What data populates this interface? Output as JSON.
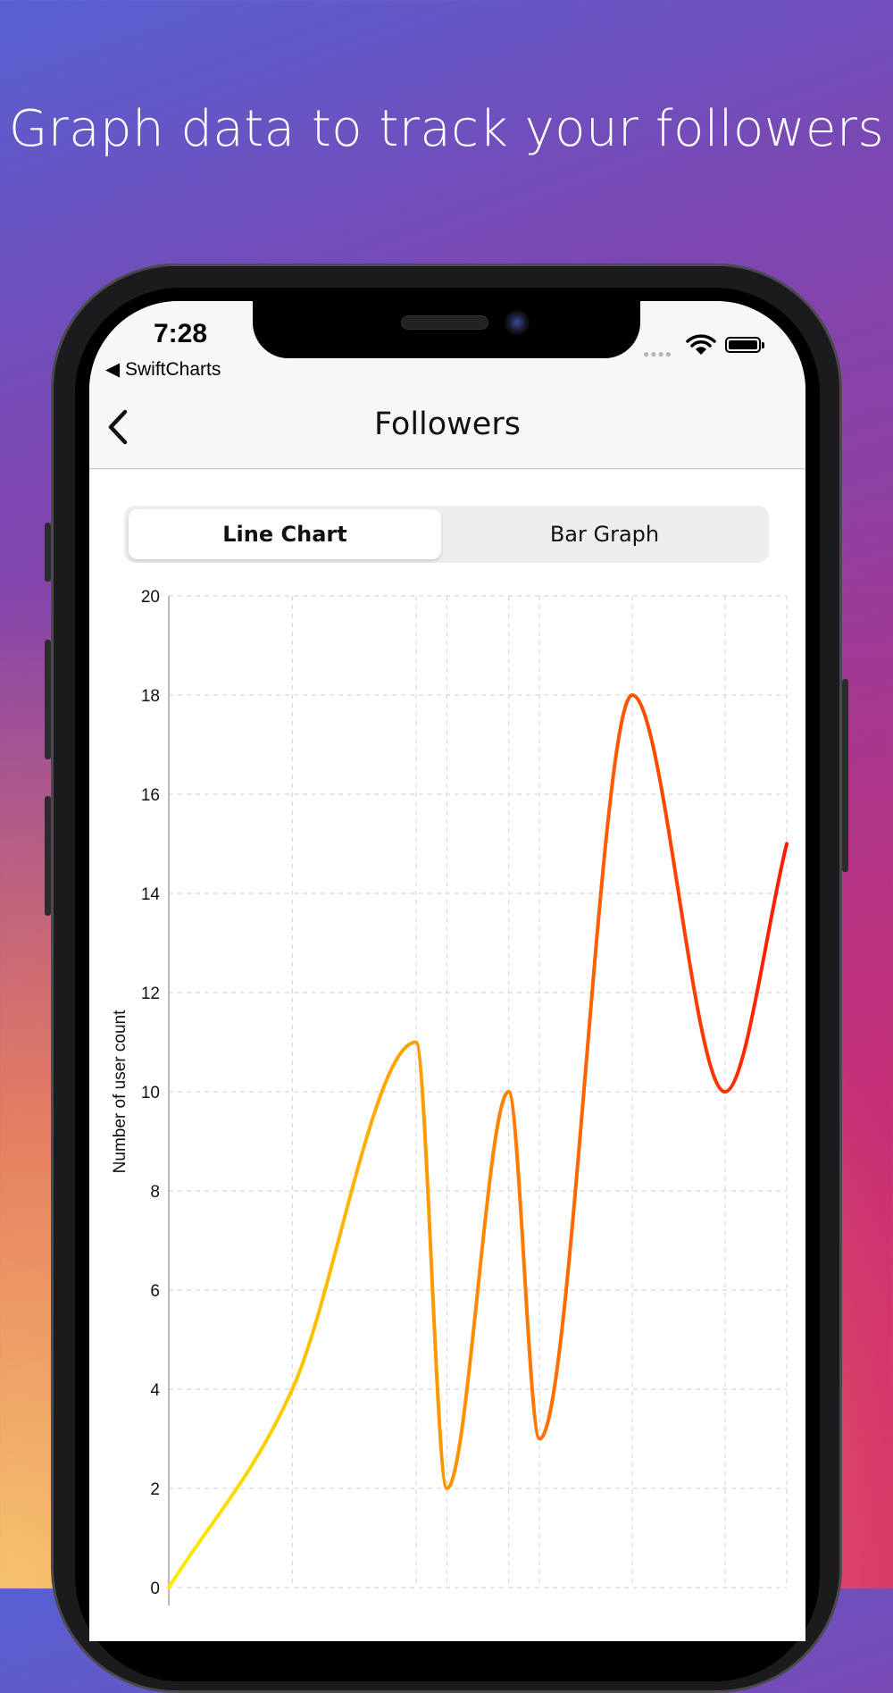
{
  "headline": "Graph data to track your followers",
  "status_bar": {
    "time": "7:28",
    "back_app": "◀ SwiftCharts",
    "signal_icon": "signal-dots-icon",
    "wifi_icon": "wifi-icon",
    "battery_icon": "battery-icon"
  },
  "nav": {
    "title": "Followers",
    "back_icon": "chevron-left-icon"
  },
  "segmented": {
    "options": [
      "Line Chart",
      "Bar Graph"
    ],
    "selected": "Line Chart"
  },
  "colors": {
    "line_start": "#ffee00",
    "line_mid": "#ff8a00",
    "line_end": "#ff1a00",
    "grid": "#d8d8d8"
  },
  "chart_data": {
    "type": "line",
    "ylabel": "Number of user count",
    "xlabel": "",
    "ylim": [
      0,
      20
    ],
    "yticks": [
      "0",
      "2",
      "4",
      "6",
      "8",
      "10",
      "12",
      "14",
      "16",
      "18",
      "20"
    ],
    "grid": true,
    "smooth": true,
    "x": [
      0,
      4,
      8,
      9,
      11,
      12,
      15,
      18,
      20
    ],
    "y": [
      0,
      4,
      11,
      2,
      10,
      3,
      18,
      10,
      15
    ]
  }
}
